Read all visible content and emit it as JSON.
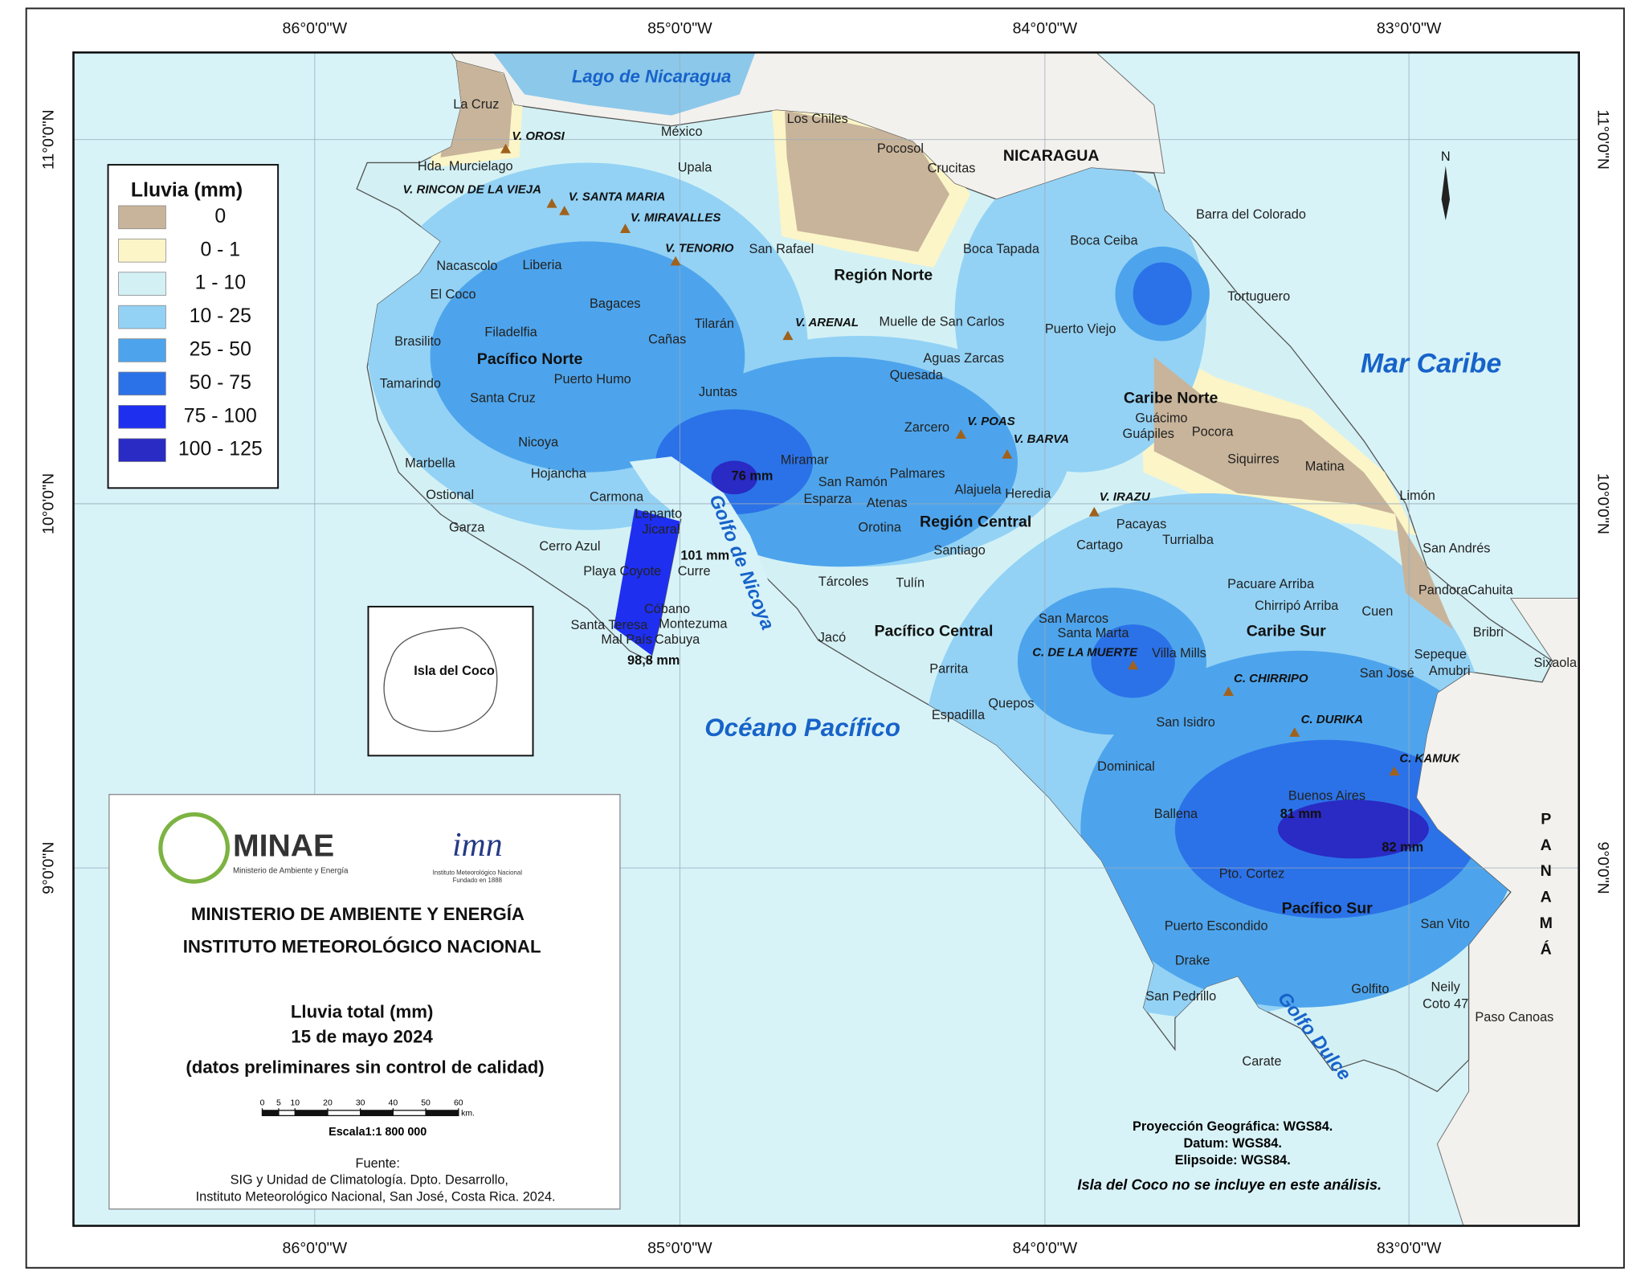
{
  "graticule": {
    "top": [
      "86°0'0\"W",
      "85°0'0\"W",
      "84°0'0\"W",
      "83°0'0\"W"
    ],
    "bottom": [
      "86°0'0\"W",
      "85°0'0\"W",
      "84°0'0\"W",
      "83°0'0\"W"
    ],
    "left": [
      "11°0'0\"N",
      "10°0'0\"N",
      "9°0'0\"N"
    ],
    "right": [
      "11°0'0\"N",
      "10°0'0\"N",
      "9°0'0\"N"
    ]
  },
  "legend": {
    "title": "Lluvia (mm)",
    "items": [
      {
        "label": "0",
        "color": "#c8b49a"
      },
      {
        "label": "0 - 1",
        "color": "#fbf5c8"
      },
      {
        "label": "1 - 10",
        "color": "#d3f1f5"
      },
      {
        "label": "10 - 25",
        "color": "#93d2f5"
      },
      {
        "label": "25 - 50",
        "color": "#4da4ec"
      },
      {
        "label": "50 - 75",
        "color": "#2b72e8"
      },
      {
        "label": "75 - 100",
        "color": "#1e2ff0"
      },
      {
        "label": "100 - 125",
        "color": "#2a2ac4"
      }
    ]
  },
  "water_labels": [
    "Lago de Nicaragua",
    "Mar Caribe",
    "Océano Pacífico",
    "Golfo de Nicoya",
    "Golfo Dulce"
  ],
  "country_labels": [
    "NICARAGUA",
    "PANAMÁ"
  ],
  "regions": [
    "Región Norte",
    "Pacífico Norte",
    "Región Central",
    "Pacífico Central",
    "Caribe Norte",
    "Caribe Sur",
    "Pacífico Sur"
  ],
  "places": [
    "La Cruz",
    "México",
    "Los Chiles",
    "Pocosol",
    "Crucitas",
    "Upala",
    "Hda. Murcielago",
    "San Rafael",
    "Barra del Colorado",
    "Boca Tapada",
    "Boca Ceiba",
    "Nacascolo",
    "Liberia",
    "El Coco",
    "Bagaces",
    "Tortuguero",
    "Brasilito",
    "Filadelfia",
    "Cañas",
    "Tilarán",
    "Muelle de San Carlos",
    "Puerto Viejo",
    "Tamarindo",
    "Puerto Humo",
    "Aguas Zarcas",
    "Quesada",
    "Santa Cruz",
    "Juntas",
    "Guácimo",
    "Guápiles",
    "Pocora",
    "Zarcero",
    "Nicoya",
    "Marbella",
    "Miramar",
    "Siquirres",
    "Matina",
    "Hojancha",
    "Palmares",
    "San Ramón",
    "Alajuela",
    "Heredia",
    "Ostional",
    "Carmona",
    "Esparza",
    "Atenas",
    "Limón",
    "Lepanto",
    "Pacayas",
    "Garza",
    "Jicaral",
    "Orotina",
    "Turrialba",
    "Santiago",
    "Cartago",
    "Cerro Azul",
    "San Andrés",
    "Playa Coyote",
    "Curre",
    "Tárcoles",
    "Tulín",
    "Pacuare Arriba",
    "PandoraCahuita",
    "Chirripó Arriba",
    "Cuen",
    "Cóbano",
    "San Marcos",
    "Montezuma",
    "Santa Teresa",
    "Santa Marta",
    "Bribri",
    "Jacó",
    "Mal País",
    "Cabuya",
    "Sixaola",
    "Sepeque",
    "Villa Mills",
    "Amubri",
    "Parrita",
    "San José",
    "Quepos",
    "Espadilla",
    "San Isidro",
    "Dominical",
    "Buenos Aires",
    "Ballena",
    "Pto. Cortez",
    "San Vito",
    "Puerto Escondido",
    "Drake",
    "Golfito",
    "Neily",
    "San Pedrillo",
    "Coto 47",
    "Paso Canoas",
    "Carate"
  ],
  "volcanoes": [
    "V. OROSI",
    "V. RINCON DE LA VIEJA",
    "V. SANTA MARIA",
    "V. MIRAVALLES",
    "V. TENORIO",
    "V. ARENAL",
    "V. POAS",
    "V. BARVA",
    "V. IRAZU",
    "C. DE LA MUERTE",
    "C. CHIRRIPO",
    "C. DURIKA",
    "C. KAMUK"
  ],
  "rain_labels": [
    "76 mm",
    "101 mm",
    "98,8 mm",
    "81 mm",
    "82 mm"
  ],
  "north": "N",
  "inset": "Isla del Coco",
  "info": {
    "logo_minae": "MINAE",
    "logo_minae_sub": "Ministerio de Ambiente y Energía",
    "logo_imn": "imn",
    "logo_imn_sub": "Instituto Meteorológico Nacional",
    "logo_imn_sub2": "Fundado en 1888",
    "line1": "MINISTERIO DE AMBIENTE Y ENERGÍA",
    "line2": "INSTITUTO METEOROLÓGICO NACIONAL",
    "title": "Lluvia total (mm)",
    "date": "15 de mayo 2024",
    "note": "(datos preliminares sin control de calidad)",
    "scale_ticks": [
      0,
      5,
      10,
      20,
      30,
      40,
      50,
      60
    ],
    "scale_unit": "km.",
    "scale": "Escala1:1 800 000",
    "source_title": "Fuente:",
    "source1": "SIG y Unidad de Climatología. Dpto. Desarrollo,",
    "source2": "Instituto Meteorológico Nacional, San José, Costa Rica. 2024."
  },
  "projection": [
    "Proyección Geográfica: WGS84.",
    "Datum: WGS84.",
    "Elipsoide: WGS84."
  ],
  "disclaimer": "Isla del Coco no se incluye en este análisis."
}
